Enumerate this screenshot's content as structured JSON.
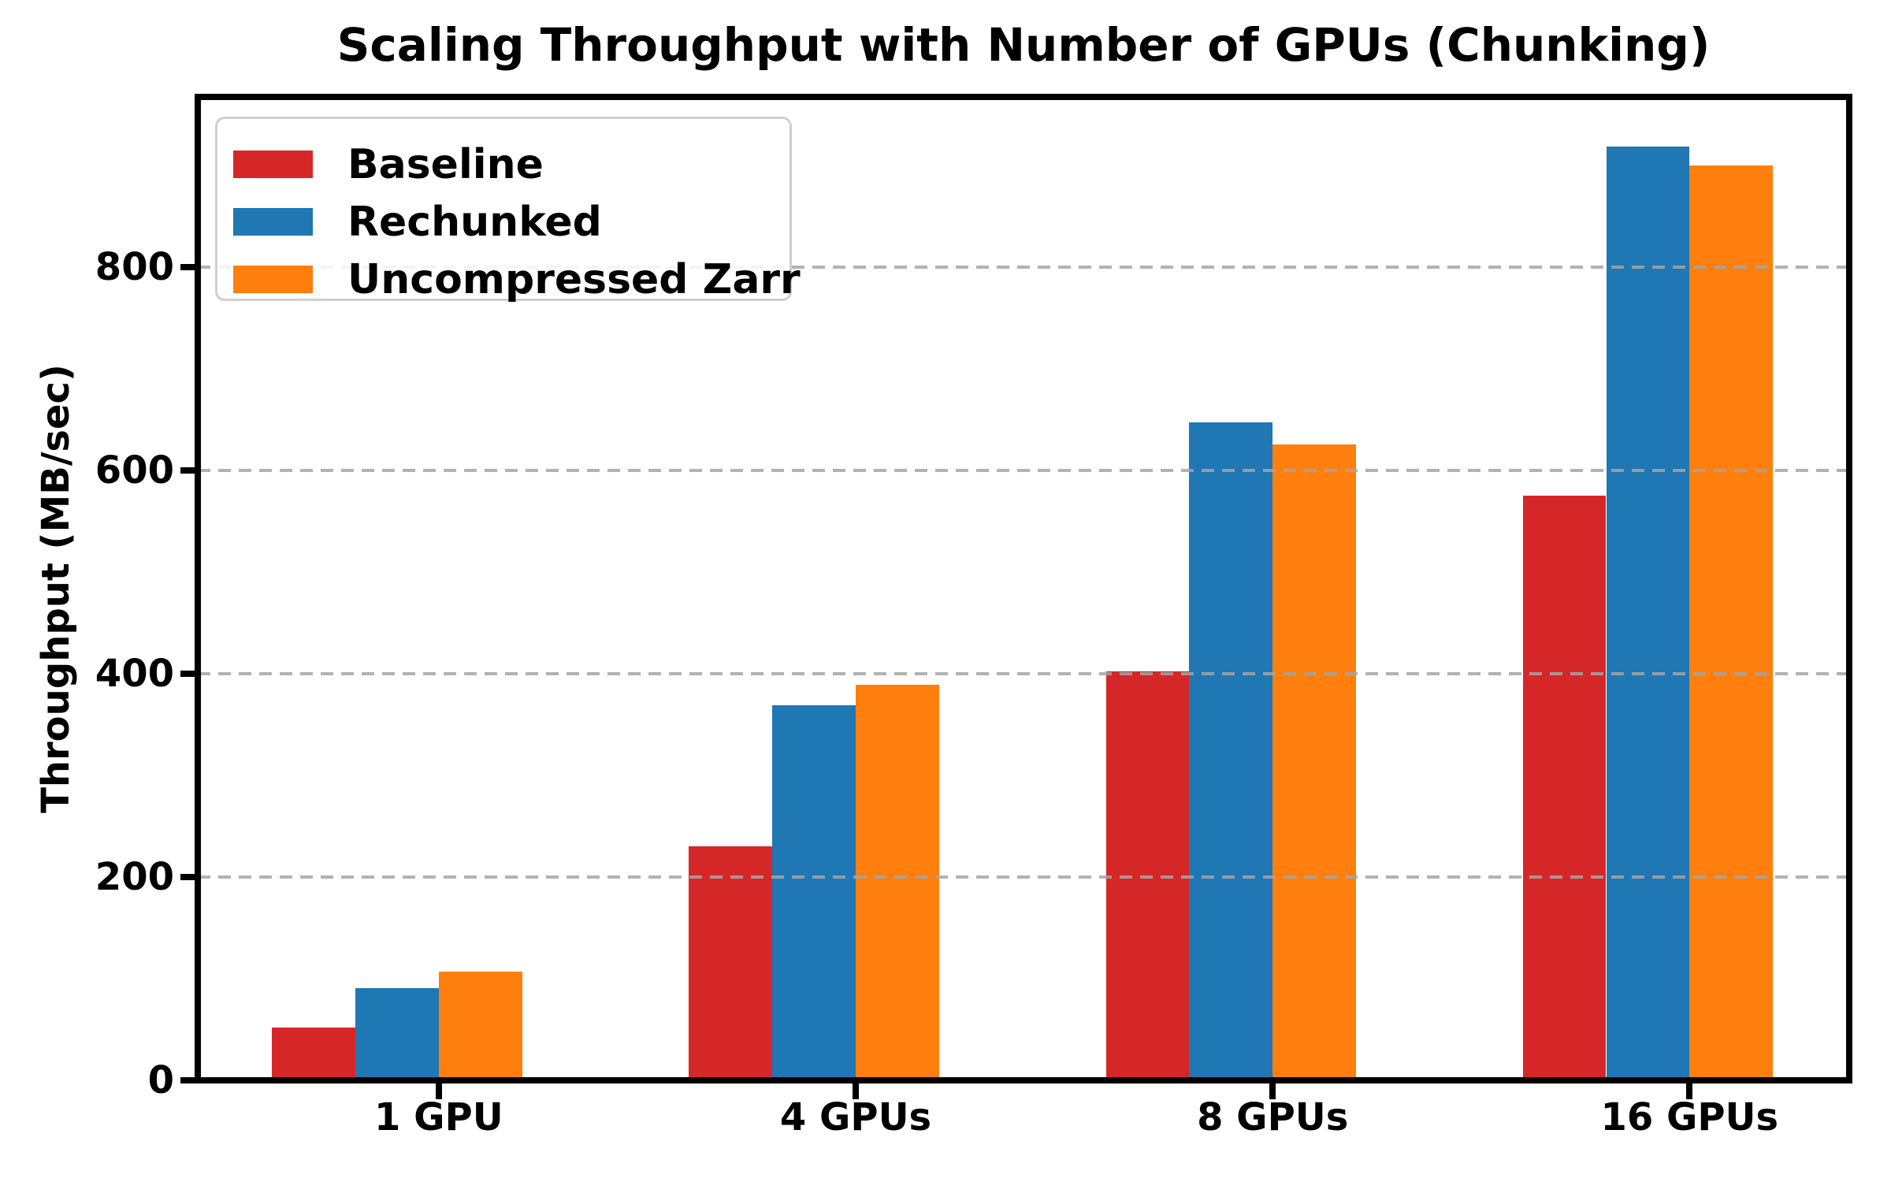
{
  "chart_data": {
    "type": "bar",
    "title": "Scaling Throughput with Number of GPUs (Chunking)",
    "xlabel": "",
    "ylabel": "Throughput (MB/sec)",
    "categories": [
      "1 GPU",
      "4 GPUs",
      "8 GPUs",
      "16 GPUs"
    ],
    "series": [
      {
        "name": "Baseline",
        "color": "#d62728",
        "values": [
          52,
          230,
          402,
          575
        ]
      },
      {
        "name": "Rechunked",
        "color": "#1f77b4",
        "values": [
          91,
          369,
          647,
          918
        ]
      },
      {
        "name": "Uncompressed Zarr",
        "color": "#ff7f0e",
        "values": [
          107,
          389,
          625,
          900
        ]
      }
    ],
    "yticks": [
      0,
      200,
      400,
      600,
      800
    ],
    "ylim": [
      0,
      967
    ],
    "xlim": [
      -0.578,
      3.383
    ],
    "bar_width": 0.2,
    "grid": "horizontal dashed gray lines at yticks, drawn above bars",
    "legend_position": "upper left",
    "grid_color": "#a5a5a5",
    "text_color": "#000000"
  }
}
